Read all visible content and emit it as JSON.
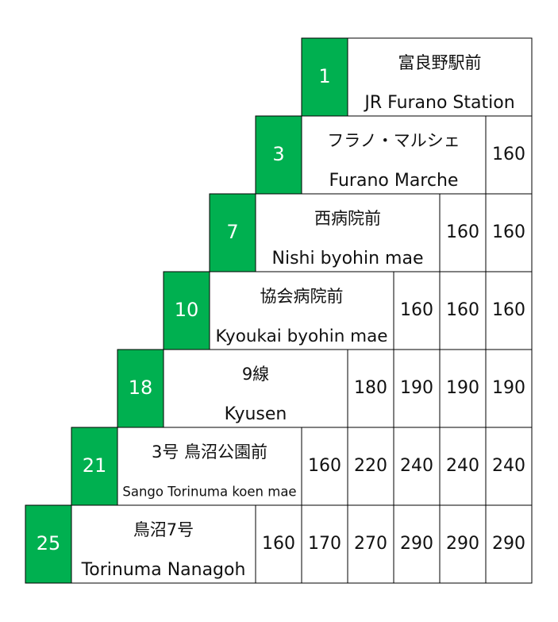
{
  "table": {
    "rows": [
      {
        "stop": "1",
        "name_ja": "富良野駅前",
        "name_en": "JR Furano Station",
        "fares": []
      },
      {
        "stop": "3",
        "name_ja": "フラノ・マルシェ",
        "name_en": "Furano Marche",
        "fares": [
          160
        ]
      },
      {
        "stop": "7",
        "name_ja": "西病院前",
        "name_en": "Nishi byohin mae",
        "fares": [
          160,
          160
        ]
      },
      {
        "stop": "10",
        "name_ja": "協会病院前",
        "name_en": "Kyoukai byohin mae",
        "fares": [
          160,
          160,
          160
        ]
      },
      {
        "stop": "18",
        "name_ja": "9線",
        "name_en": "Kyusen",
        "fares": [
          180,
          190,
          190,
          190
        ]
      },
      {
        "stop": "21",
        "name_ja": "3号 鳥沼公園前",
        "name_en": "Sango Torinuma koen mae",
        "fares": [
          160,
          220,
          240,
          240,
          240
        ]
      },
      {
        "stop": "25",
        "name_ja": "鳥沼7号",
        "name_en": "Torinuma Nanagoh",
        "fares": [
          160,
          170,
          270,
          290,
          290,
          290
        ]
      }
    ]
  }
}
